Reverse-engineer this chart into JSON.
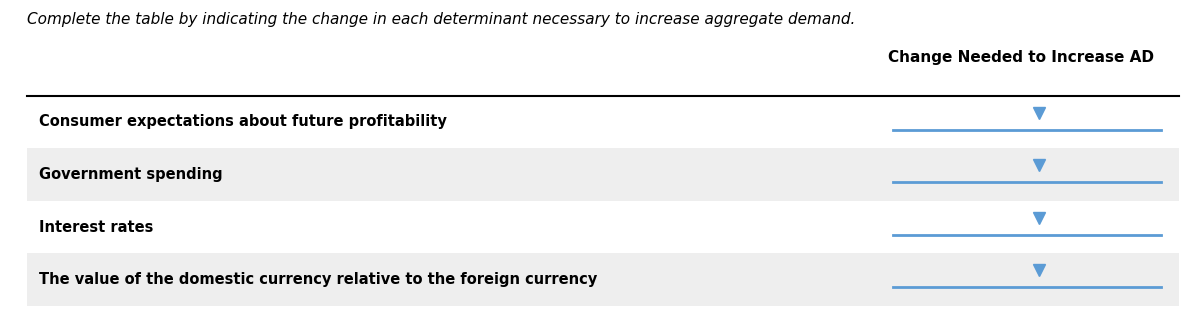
{
  "instruction": "Complete the table by indicating the change in each determinant necessary to increase aggregate demand.",
  "column_header": "Change Needed to Increase AD",
  "rows": [
    "Consumer expectations about future profitability",
    "Government spending",
    "Interest rates",
    "The value of the domestic currency relative to the foreign currency"
  ],
  "row_bg_colors": [
    "#ffffff",
    "#eeeeee",
    "#ffffff",
    "#eeeeee"
  ],
  "header_line_color": "#000000",
  "dropdown_color": "#5b9bd5",
  "dropdown_line_color": "#5b9bd5",
  "background_color": "#ffffff",
  "instruction_color": "#000000",
  "row_text_color": "#000000",
  "header_text_color": "#000000",
  "fig_width": 12.0,
  "fig_height": 3.15
}
